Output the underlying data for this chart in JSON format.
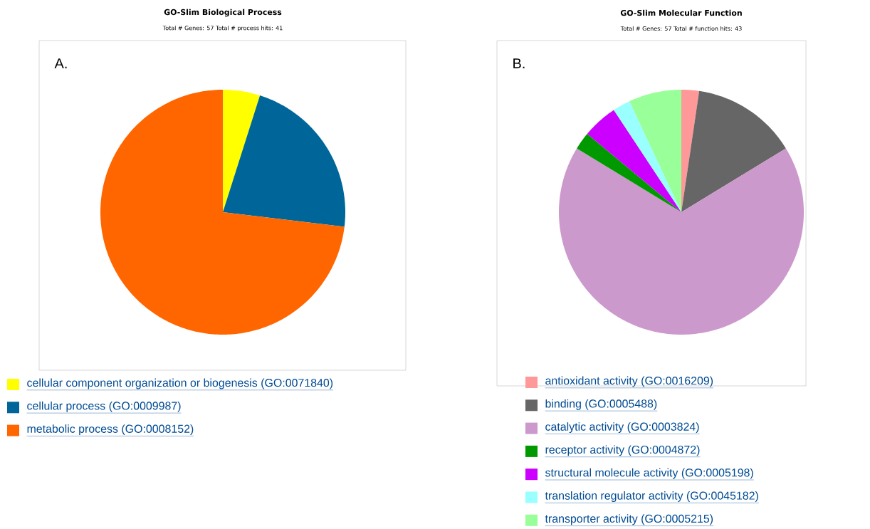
{
  "chart_data": [
    {
      "type": "pie",
      "title": "GO-Slim Biological Process",
      "subtitle": "Total # Genes: 57   Total # process hits: 41",
      "annotations": [
        "A."
      ],
      "legend": "bottom",
      "categories": [
        "cellular component organization or biogenesis (GO:0071840)",
        "cellular process (GO:0009987)",
        "metabolic process (GO:0008152)"
      ],
      "values": [
        4.9,
        22.0,
        73.1
      ],
      "colors": [
        "#ffff00",
        "#006699",
        "#ff6600"
      ]
    },
    {
      "type": "pie",
      "title": "GO-Slim Molecular Function",
      "subtitle": "Total # Genes: 57   Total # function hits: 43",
      "annotations": [
        "B."
      ],
      "legend": "bottom",
      "categories": [
        "antioxidant activity (GO:0016209)",
        "binding (GO:0005488)",
        "catalytic activity (GO:0003824)",
        "receptor activity (GO:0004872)",
        "structural molecule activity (GO:0005198)",
        "translation regulator activity (GO:0045182)",
        "transporter activity (GO:0005215)"
      ],
      "values": [
        2.33,
        13.95,
        67.44,
        2.33,
        4.65,
        2.33,
        6.97
      ],
      "colors": [
        "#ff9999",
        "#666666",
        "#cc99cc",
        "#009900",
        "#cc00ff",
        "#99ffff",
        "#99ff99"
      ]
    }
  ]
}
